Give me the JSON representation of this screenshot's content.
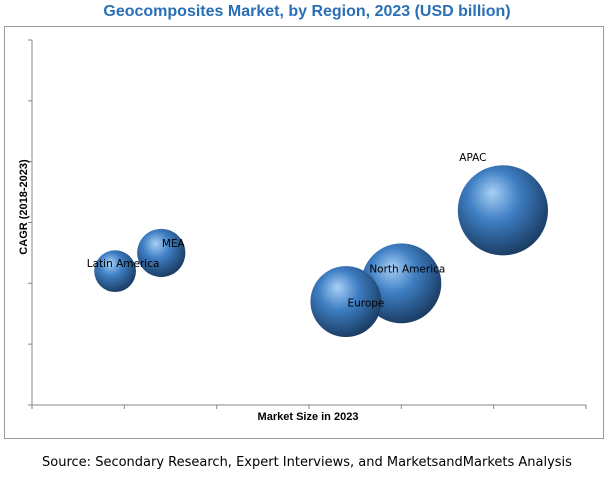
{
  "chart_data": {
    "type": "scatter",
    "title": "Geocomposites Market, by Region, 2023 (USD billion)",
    "xlabel": "Market Size in 2023",
    "ylabel": "CAGR (2018-2023)",
    "xlim": [
      0,
      6
    ],
    "ylim": [
      0,
      6
    ],
    "grid": false,
    "legend": "none",
    "points": [
      {
        "label": "Latin America",
        "x": 0.9,
        "y": 2.2,
        "size": 0.9
      },
      {
        "label": "MEA",
        "x": 1.4,
        "y": 2.5,
        "size": 1.2
      },
      {
        "label": "Europe",
        "x": 3.4,
        "y": 1.7,
        "size": 2.6
      },
      {
        "label": "North America",
        "x": 4.0,
        "y": 2.0,
        "size": 3.3
      },
      {
        "label": "APAC",
        "x": 5.1,
        "y": 3.2,
        "size": 4.2
      }
    ],
    "source": "Source: Secondary Research, Expert Interviews, and MarketsandMarkets Analysis"
  },
  "colors": {
    "title": "#2a6fb6",
    "bubble_light": "#a8d0f5",
    "bubble_mid": "#3f7fc4",
    "bubble_dark": "#1b3e66",
    "axis": "#888888"
  }
}
